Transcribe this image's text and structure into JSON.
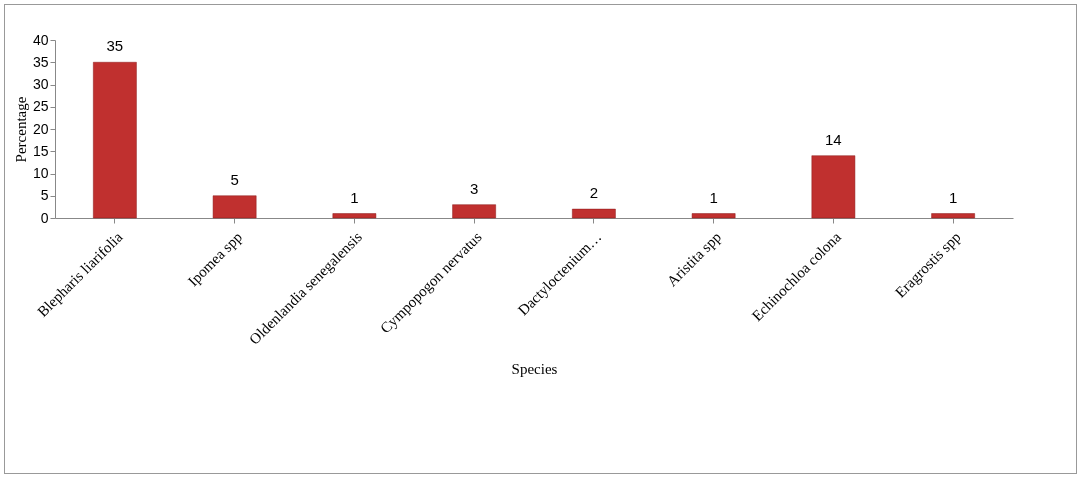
{
  "chart_data": {
    "type": "bar",
    "xlabel": "Species",
    "ylabel": "Percentage",
    "categories": [
      "Blepharis  liarifolia",
      "Ipomea  spp",
      "Oldenlandia senegalensis",
      "Cympopogon nervatus",
      "Dactyloctenium…",
      "Aristita spp",
      "Echinochloa  colona",
      "Eragrostis spp"
    ],
    "values": [
      35,
      5,
      1,
      3,
      2,
      1,
      14,
      1
    ],
    "color": "#c0302f",
    "ylim": [
      0,
      40
    ],
    "yticks": [
      0,
      5,
      10,
      15,
      20,
      25,
      30,
      35,
      40
    ],
    "data_labels": true,
    "grid": false
  }
}
